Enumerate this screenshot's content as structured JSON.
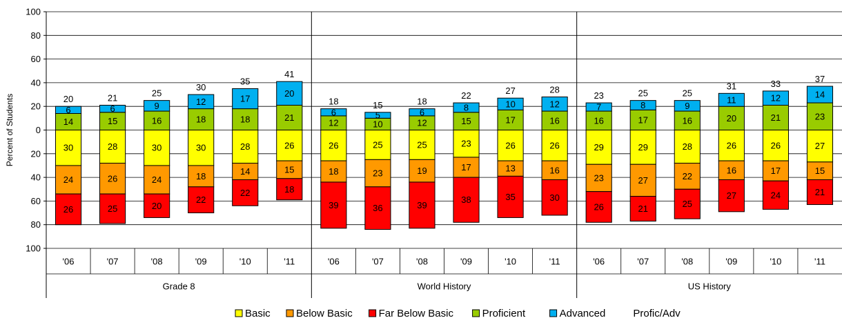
{
  "chart_data": {
    "type": "bar",
    "stacked": "diverging",
    "ylabel": "Percent of Students",
    "y_ticks": [
      "100",
      "80",
      "60",
      "40",
      "20",
      "0",
      "20",
      "40",
      "60",
      "80",
      "100"
    ],
    "ylim": [
      -100,
      100
    ],
    "grid": true,
    "legend_position": "bottom",
    "groups": [
      {
        "name": "Grade 8",
        "categories": [
          "'06",
          "'07",
          "'08",
          "'09",
          "'10",
          "'11"
        ]
      },
      {
        "name": "World History",
        "categories": [
          "'06",
          "'07",
          "'08",
          "'09",
          "'10",
          "'11"
        ]
      },
      {
        "name": "US History",
        "categories": [
          "'06",
          "'07",
          "'08",
          "'09",
          "'10",
          "'11"
        ]
      }
    ],
    "series": [
      {
        "name": "Basic",
        "color": "#ffff00",
        "direction": "down",
        "values": [
          30,
          28,
          30,
          30,
          28,
          26,
          26,
          25,
          25,
          23,
          26,
          26,
          29,
          29,
          28,
          26,
          26,
          27
        ]
      },
      {
        "name": "Below Basic",
        "color": "#ff9900",
        "direction": "down",
        "values": [
          24,
          26,
          24,
          18,
          14,
          15,
          18,
          23,
          19,
          17,
          13,
          16,
          23,
          27,
          22,
          16,
          17,
          15
        ]
      },
      {
        "name": "Far Below Basic",
        "color": "#ff0000",
        "direction": "down",
        "values": [
          26,
          25,
          20,
          22,
          22,
          18,
          39,
          36,
          39,
          38,
          35,
          30,
          26,
          21,
          25,
          27,
          24,
          21
        ]
      },
      {
        "name": "Proficient",
        "color": "#99cc00",
        "direction": "up",
        "values": [
          14,
          15,
          16,
          18,
          18,
          21,
          12,
          10,
          12,
          15,
          17,
          16,
          16,
          17,
          16,
          20,
          21,
          23
        ]
      },
      {
        "name": "Advanced",
        "color": "#00b0f0",
        "direction": "up",
        "values": [
          6,
          6,
          9,
          12,
          17,
          20,
          6,
          5,
          6,
          8,
          10,
          12,
          7,
          8,
          9,
          11,
          12,
          14
        ]
      }
    ],
    "totals_series": {
      "name": "Profic/Adv",
      "values": [
        20,
        21,
        25,
        30,
        35,
        41,
        18,
        15,
        18,
        22,
        27,
        28,
        23,
        25,
        25,
        31,
        33,
        37
      ]
    }
  }
}
